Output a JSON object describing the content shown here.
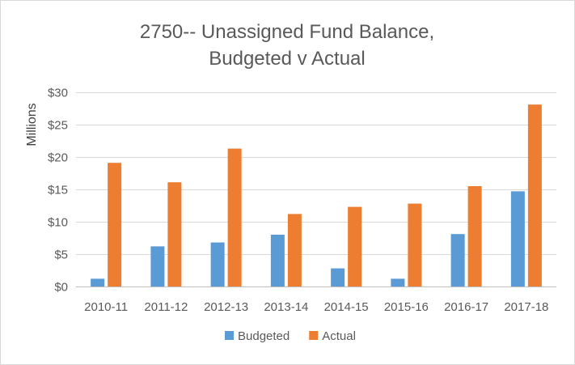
{
  "chart_data": {
    "type": "bar",
    "title_line1": "2750-- Unassigned Fund Balance,",
    "title_line2": "Budgeted v Actual",
    "ylabel": "Millions",
    "xlabel": "",
    "categories": [
      "2010-11",
      "2011-12",
      "2012-13",
      "2013-14",
      "2014-15",
      "2015-16",
      "2016-17",
      "2017-18"
    ],
    "series": [
      {
        "name": "Budgeted",
        "color": "#5b9bd5",
        "values": [
          1.2,
          6.2,
          6.8,
          8.0,
          2.8,
          1.2,
          8.1,
          14.7
        ]
      },
      {
        "name": "Actual",
        "color": "#ed7d31",
        "values": [
          19.1,
          16.1,
          21.3,
          11.2,
          12.3,
          12.8,
          15.5,
          28.1
        ]
      }
    ],
    "yticks": [
      {
        "value": 0,
        "label": "$0"
      },
      {
        "value": 5,
        "label": "$5"
      },
      {
        "value": 10,
        "label": "$10"
      },
      {
        "value": 15,
        "label": "$15"
      },
      {
        "value": 20,
        "label": "$20"
      },
      {
        "value": 25,
        "label": "$25"
      },
      {
        "value": 30,
        "label": "$30"
      }
    ],
    "ylim": [
      0,
      30
    ],
    "grid": true,
    "legend_position": "bottom"
  }
}
